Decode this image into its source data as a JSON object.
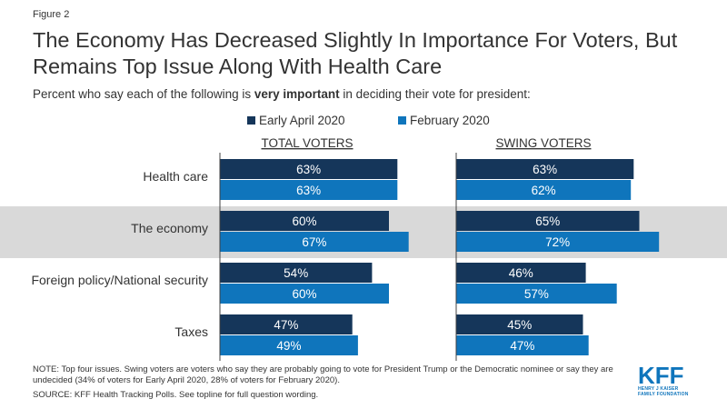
{
  "figure_label": "Figure 2",
  "title": "The Economy Has Decreased Slightly In Importance For Voters, But Remains Top Issue Along With Health Care",
  "subtitle": {
    "before": "Percent who say each of the following is ",
    "bold": "very important",
    "after": " in deciding their vote for president:"
  },
  "colors": {
    "early_april": "#15365a",
    "february": "#0f75bc",
    "highlight_band": "#d9d9d9",
    "axis": "#404040",
    "brand": "#0f75bc"
  },
  "chart_data": {
    "type": "bar",
    "orientation": "horizontal",
    "categories": [
      "Health care",
      "The economy",
      "Foreign policy/National security",
      "Taxes"
    ],
    "highlighted_category": "The economy",
    "value_format": "percent",
    "legend": [
      "Early April 2020",
      "February 2020"
    ],
    "panels": [
      {
        "label": "TOTAL VOTERS",
        "series": [
          {
            "name": "Early April 2020",
            "values": [
              63,
              60,
              54,
              47
            ]
          },
          {
            "name": "February 2020",
            "values": [
              63,
              67,
              60,
              49
            ]
          }
        ]
      },
      {
        "label": "SWING VOTERS",
        "series": [
          {
            "name": "Early April 2020",
            "values": [
              63,
              65,
              46,
              45
            ]
          },
          {
            "name": "February 2020",
            "values": [
              62,
              72,
              57,
              47
            ]
          }
        ]
      }
    ]
  },
  "note": "NOTE: Top four issues. Swing voters are voters who say they are probably going to vote for President Trump or the Democratic nominee or say they are undecided (34% of voters for Early April 2020, 28% of voters for February 2020).",
  "source": "SOURCE: KFF Health Tracking Polls. See topline for full question wording.",
  "logo": {
    "mark": "KFF",
    "line1": "HENRY J KAISER",
    "line2": "FAMILY FOUNDATION"
  }
}
